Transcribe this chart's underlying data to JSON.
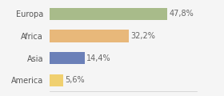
{
  "categories": [
    "Europa",
    "Africa",
    "Asia",
    "America"
  ],
  "values": [
    47.8,
    32.2,
    14.4,
    5.6
  ],
  "labels": [
    "47,8%",
    "32,2%",
    "14,4%",
    "5,6%"
  ],
  "bar_colors": [
    "#a8bb8a",
    "#e8b87a",
    "#6b80b8",
    "#f0d070"
  ],
  "background_color": "#f5f5f5",
  "xlim": [
    0,
    60
  ],
  "label_fontsize": 7,
  "category_fontsize": 7,
  "bar_height": 0.55
}
